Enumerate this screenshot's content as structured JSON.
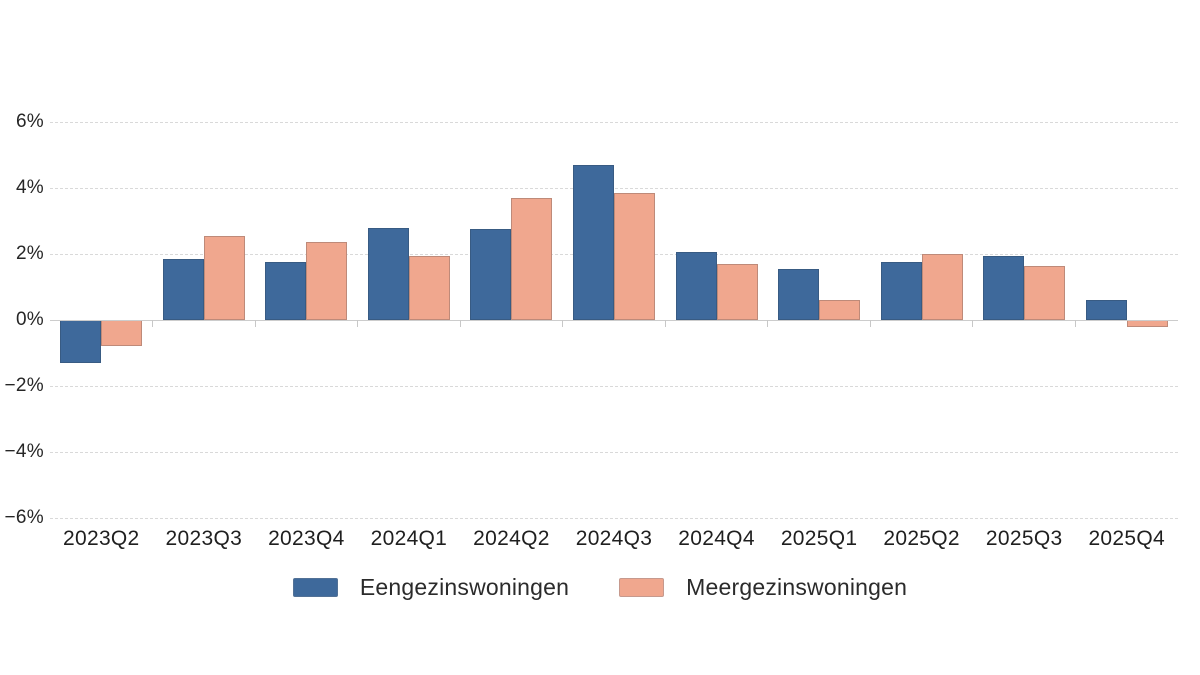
{
  "chart_data": {
    "type": "bar",
    "title": "",
    "categories": [
      "2023Q2",
      "2023Q3",
      "2023Q4",
      "2024Q1",
      "2024Q2",
      "2024Q3",
      "2024Q4",
      "2025Q1",
      "2025Q2",
      "2025Q3",
      "2025Q4"
    ],
    "series": [
      {
        "name": "Eengezinswoningen",
        "color": "#3e699b",
        "values": [
          -1.3,
          1.85,
          1.75,
          2.8,
          2.75,
          4.7,
          2.05,
          1.55,
          1.75,
          1.95,
          0.6
        ]
      },
      {
        "name": "Meergezinswoningen",
        "color": "#f0a78e",
        "values": [
          -0.8,
          2.55,
          2.35,
          1.95,
          3.7,
          3.85,
          1.7,
          0.6,
          2.0,
          1.65,
          -0.2
        ]
      }
    ],
    "unit": "%",
    "ylim": [
      -6,
      6
    ],
    "yticks": [
      {
        "value": 6,
        "label": "6%"
      },
      {
        "value": 4,
        "label": "4%"
      },
      {
        "value": 2,
        "label": "2%"
      },
      {
        "value": 0,
        "label": "0%"
      },
      {
        "value": -2,
        "label": "−2%"
      },
      {
        "value": -4,
        "label": "−4%"
      },
      {
        "value": -6,
        "label": "−6%"
      }
    ],
    "grid": "horizontal-dashed",
    "legend_position": "bottom"
  },
  "styles": {
    "background": "#ffffff",
    "gridline_color": "#d9d9d9",
    "zero_line_color": "#cccccc",
    "axis_tick_color": "#c8c8c8",
    "label_color": "#262626"
  }
}
